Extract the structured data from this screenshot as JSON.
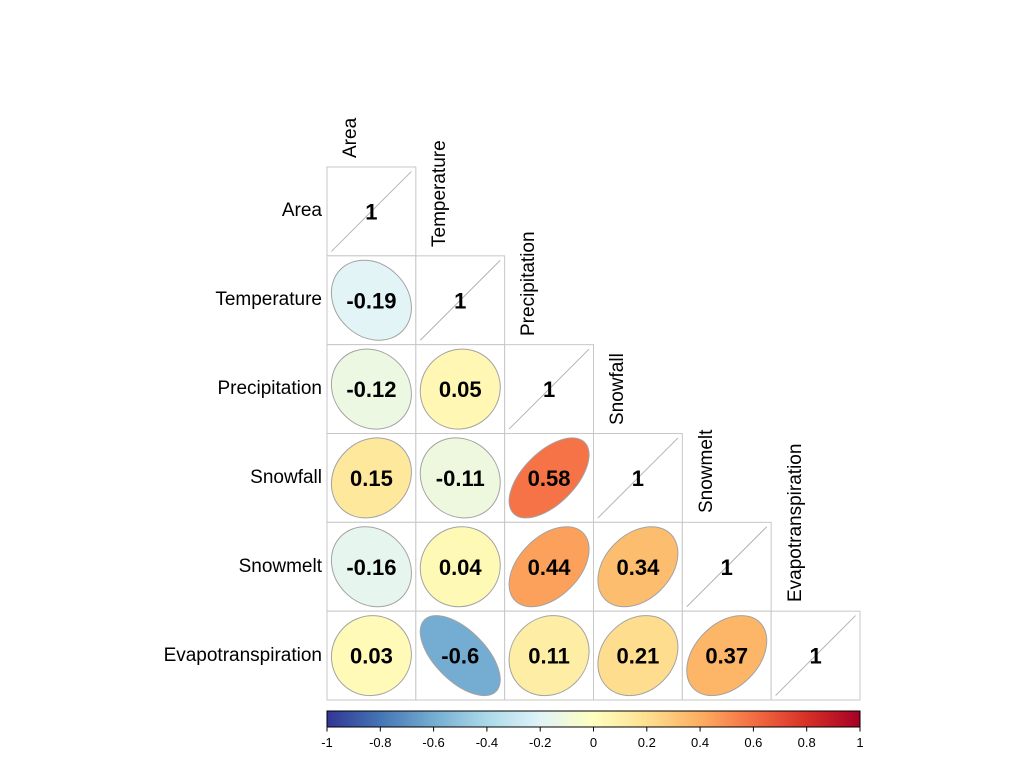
{
  "chart_data": {
    "type": "heatmap",
    "subtype": "correlation-matrix",
    "glyph": "ellipse",
    "layout": "lower-triangle",
    "title": "",
    "variables": [
      "Area",
      "Temperature",
      "Precipitation",
      "Snowfall",
      "Snowmelt",
      "Evapotranspiration"
    ],
    "matrix": [
      [
        1
      ],
      [
        -0.19,
        1
      ],
      [
        -0.12,
        0.05,
        1
      ],
      [
        0.15,
        -0.11,
        0.58,
        1
      ],
      [
        -0.16,
        0.04,
        0.44,
        0.34,
        1
      ],
      [
        0.03,
        -0.6,
        0.11,
        0.21,
        0.37,
        1
      ]
    ],
    "colorbar": {
      "min": -1,
      "max": 1,
      "ticks": [
        "-1",
        "-0.8",
        "-0.6",
        "-0.4",
        "-0.2",
        "0",
        "0.2",
        "0.4",
        "0.6",
        "0.8",
        "1"
      ],
      "gradient_stops": [
        "#313695",
        "#4575b4",
        "#74add1",
        "#abd9e9",
        "#e0f3f8",
        "#ffffbf",
        "#fee090",
        "#fdae61",
        "#f46d43",
        "#d73027",
        "#a50026"
      ]
    },
    "colors": {
      "background": "#ffffff",
      "grid_line": "#c7c7c7",
      "ellipse_outline": "#a3a3a3",
      "diagonal_line": "#b3b3b3",
      "value_text": "#000000",
      "label_text": "#000000",
      "colorbar_border": "#000000"
    }
  }
}
